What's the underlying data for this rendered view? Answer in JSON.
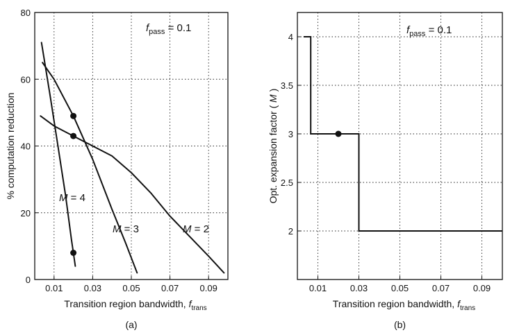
{
  "chart_data": [
    {
      "type": "line",
      "panel_label": "(a)",
      "xlabel": "Transition region bandwidth,",
      "xlabel_symbol": "f",
      "xlabel_sub": "trans",
      "ylabel": "% computation reduction",
      "xlim": [
        0,
        0.1
      ],
      "ylim": [
        0,
        80
      ],
      "xticks": [
        0.01,
        0.03,
        0.05,
        0.07,
        0.09
      ],
      "xtick_labels": [
        "0.01",
        "0.03",
        "0.05",
        "0.07",
        "0.09"
      ],
      "yticks": [
        0,
        20,
        40,
        60,
        80
      ],
      "ytick_labels": [
        "0",
        "20",
        "40",
        "60",
        "80"
      ],
      "grid": true,
      "annotation": {
        "symbol": "f",
        "sub": "pass",
        "text": " = 0.1"
      },
      "series": [
        {
          "name": "M = 4",
          "label_symbol": "M",
          "label_text": " = 4",
          "x": [
            0.0035,
            0.008,
            0.012,
            0.016,
            0.019,
            0.021
          ],
          "y": [
            71,
            55,
            40,
            25,
            12,
            4
          ]
        },
        {
          "name": "M = 3",
          "label_symbol": "M",
          "label_text": " = 3",
          "x": [
            0.004,
            0.01,
            0.02,
            0.03,
            0.04,
            0.047,
            0.053
          ],
          "y": [
            65,
            60,
            49,
            36,
            21,
            11,
            2
          ]
        },
        {
          "name": "M = 2",
          "label_symbol": "M",
          "label_text": " = 2",
          "x": [
            0.003,
            0.01,
            0.02,
            0.03,
            0.04,
            0.05,
            0.06,
            0.07,
            0.08,
            0.09,
            0.098
          ],
          "y": [
            49,
            46,
            43,
            40,
            37,
            32,
            26,
            19,
            13,
            7,
            2
          ]
        }
      ],
      "markers": [
        {
          "x": 0.02,
          "y": 49
        },
        {
          "x": 0.02,
          "y": 43
        },
        {
          "x": 0.02,
          "y": 8
        }
      ]
    },
    {
      "type": "line",
      "panel_label": "(b)",
      "xlabel": "Transition region bandwidth,",
      "xlabel_symbol": "f",
      "xlabel_sub": "trans",
      "ylabel": "Opt. expansion factor ( M)",
      "ylabel_text": "Opt. expansion factor (",
      "ylabel_symbol": "M",
      "ylabel_close": ")",
      "xlim": [
        0,
        0.1
      ],
      "ylim": [
        1.5,
        4.25
      ],
      "xticks": [
        0.01,
        0.03,
        0.05,
        0.07,
        0.09
      ],
      "xtick_labels": [
        "0.01",
        "0.03",
        "0.05",
        "0.07",
        "0.09"
      ],
      "yticks": [
        2,
        2.5,
        3,
        3.5,
        4
      ],
      "ytick_labels": [
        "2",
        "2.5",
        "3",
        "3.5",
        "4"
      ],
      "grid": true,
      "annotation": {
        "symbol": "f",
        "sub": "pass",
        "text": " = 0.1"
      },
      "series": [
        {
          "x": [
            0.003,
            0.0065,
            0.0065,
            0.03,
            0.03,
            0.1
          ],
          "y": [
            4,
            4,
            3,
            3,
            2,
            2
          ]
        }
      ],
      "markers": [
        {
          "x": 0.02,
          "y": 3
        }
      ]
    }
  ]
}
